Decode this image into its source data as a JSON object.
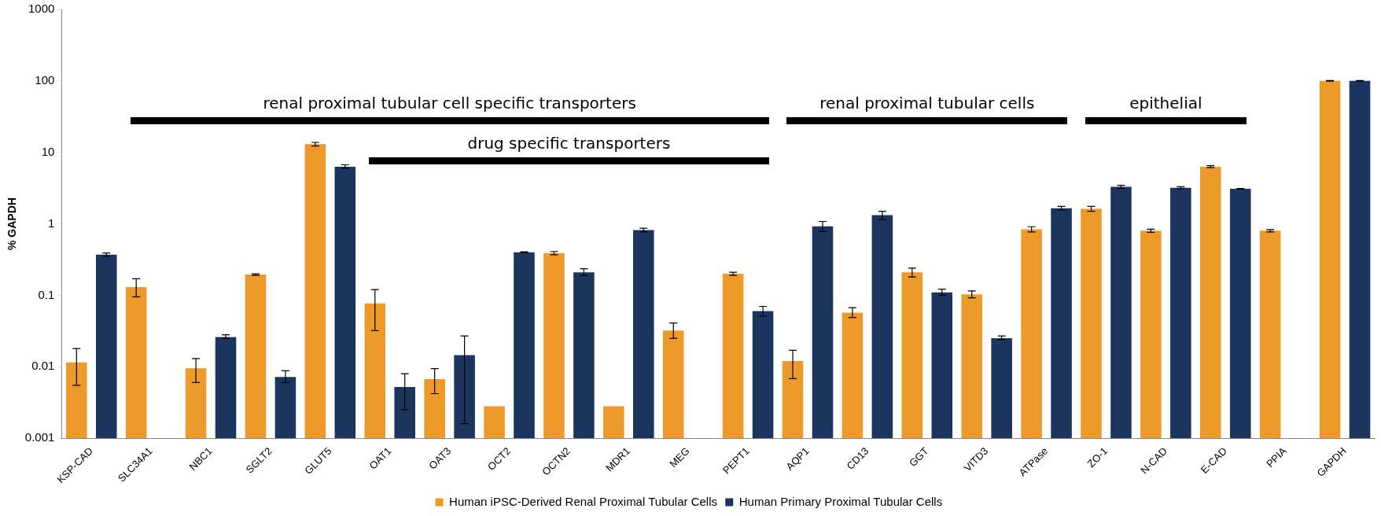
{
  "chart_data": {
    "type": "bar",
    "ylabel": "% GAPDH",
    "log": "y",
    "ylim": [
      0.001,
      1000
    ],
    "yticks": [
      0.001,
      0.01,
      0.1,
      1,
      10,
      100,
      1000
    ],
    "grid": false,
    "legend": "bottom",
    "categories": [
      "KSP-CAD",
      "SLC34A1",
      "NBC1",
      "SGLT2",
      "GLUT5",
      "OAT1",
      "OAT3",
      "OCT2",
      "OCTN2",
      "MDR1",
      "MEG",
      "PEPT1",
      "AQP1",
      "CD13",
      "GGT",
      "VITD3",
      "ATPase",
      "ZO-1",
      "N-CAD",
      "E-CAD",
      "PPIA",
      "GAPDH"
    ],
    "series": [
      {
        "name": "Human iPSC-Derived Renal Proximal Tubular Cells",
        "color": "#ee9a2a",
        "values": [
          0.0115,
          0.13,
          0.0095,
          0.195,
          13,
          0.077,
          0.0067,
          0.0028,
          0.39,
          0.0028,
          0.032,
          0.2,
          0.012,
          0.057,
          0.21,
          0.103,
          0.84,
          1.62,
          0.8,
          6.3,
          0.8,
          100
        ],
        "errors": [
          [
            0.0055,
            0.018
          ],
          [
            0.095,
            0.17
          ],
          [
            0.006,
            0.013
          ],
          [
            0.19,
            0.2
          ],
          [
            12.3,
            13.8
          ],
          [
            0.032,
            0.12
          ],
          [
            0.0042,
            0.0094
          ],
          null,
          [
            0.37,
            0.41
          ],
          null,
          [
            0.025,
            0.041
          ],
          [
            0.19,
            0.21
          ],
          [
            0.0068,
            0.017
          ],
          [
            0.049,
            0.067
          ],
          [
            0.18,
            0.24
          ],
          [
            0.092,
            0.115
          ],
          [
            0.77,
            0.91
          ],
          [
            1.5,
            1.75
          ],
          [
            0.76,
            0.84
          ],
          [
            6.1,
            6.5
          ],
          [
            0.77,
            0.83
          ],
          [
            99,
            101
          ]
        ]
      },
      {
        "name": "Human Primary Proximal Tubular Cells",
        "color": "#1c355e",
        "values": [
          0.37,
          null,
          0.026,
          0.0072,
          6.3,
          0.0052,
          0.0145,
          0.4,
          0.21,
          0.82,
          null,
          0.06,
          0.92,
          1.32,
          0.11,
          0.025,
          1.65,
          3.3,
          3.2,
          3.1,
          null,
          100
        ],
        "errors": [
          [
            0.35,
            0.39
          ],
          null,
          [
            0.025,
            0.028
          ],
          [
            0.006,
            0.0088
          ],
          [
            6,
            6.7
          ],
          [
            0.0025,
            0.008
          ],
          [
            0.0016,
            0.027
          ],
          [
            0.395,
            0.405
          ],
          [
            0.19,
            0.235
          ],
          [
            0.77,
            0.87
          ],
          null,
          [
            0.051,
            0.07
          ],
          [
            0.78,
            1.08
          ],
          [
            1.15,
            1.5
          ],
          [
            0.1,
            0.122
          ],
          [
            0.024,
            0.027
          ],
          [
            1.55,
            1.75
          ],
          [
            3.15,
            3.45
          ],
          [
            3.1,
            3.3
          ],
          [
            3.08,
            3.12
          ],
          null,
          [
            99,
            101
          ]
        ]
      }
    ],
    "annotations": [
      "renal proximal tubular cell specific transporters",
      "drug specific transporters",
      "renal proximal tubular cells",
      "epithelial"
    ]
  }
}
